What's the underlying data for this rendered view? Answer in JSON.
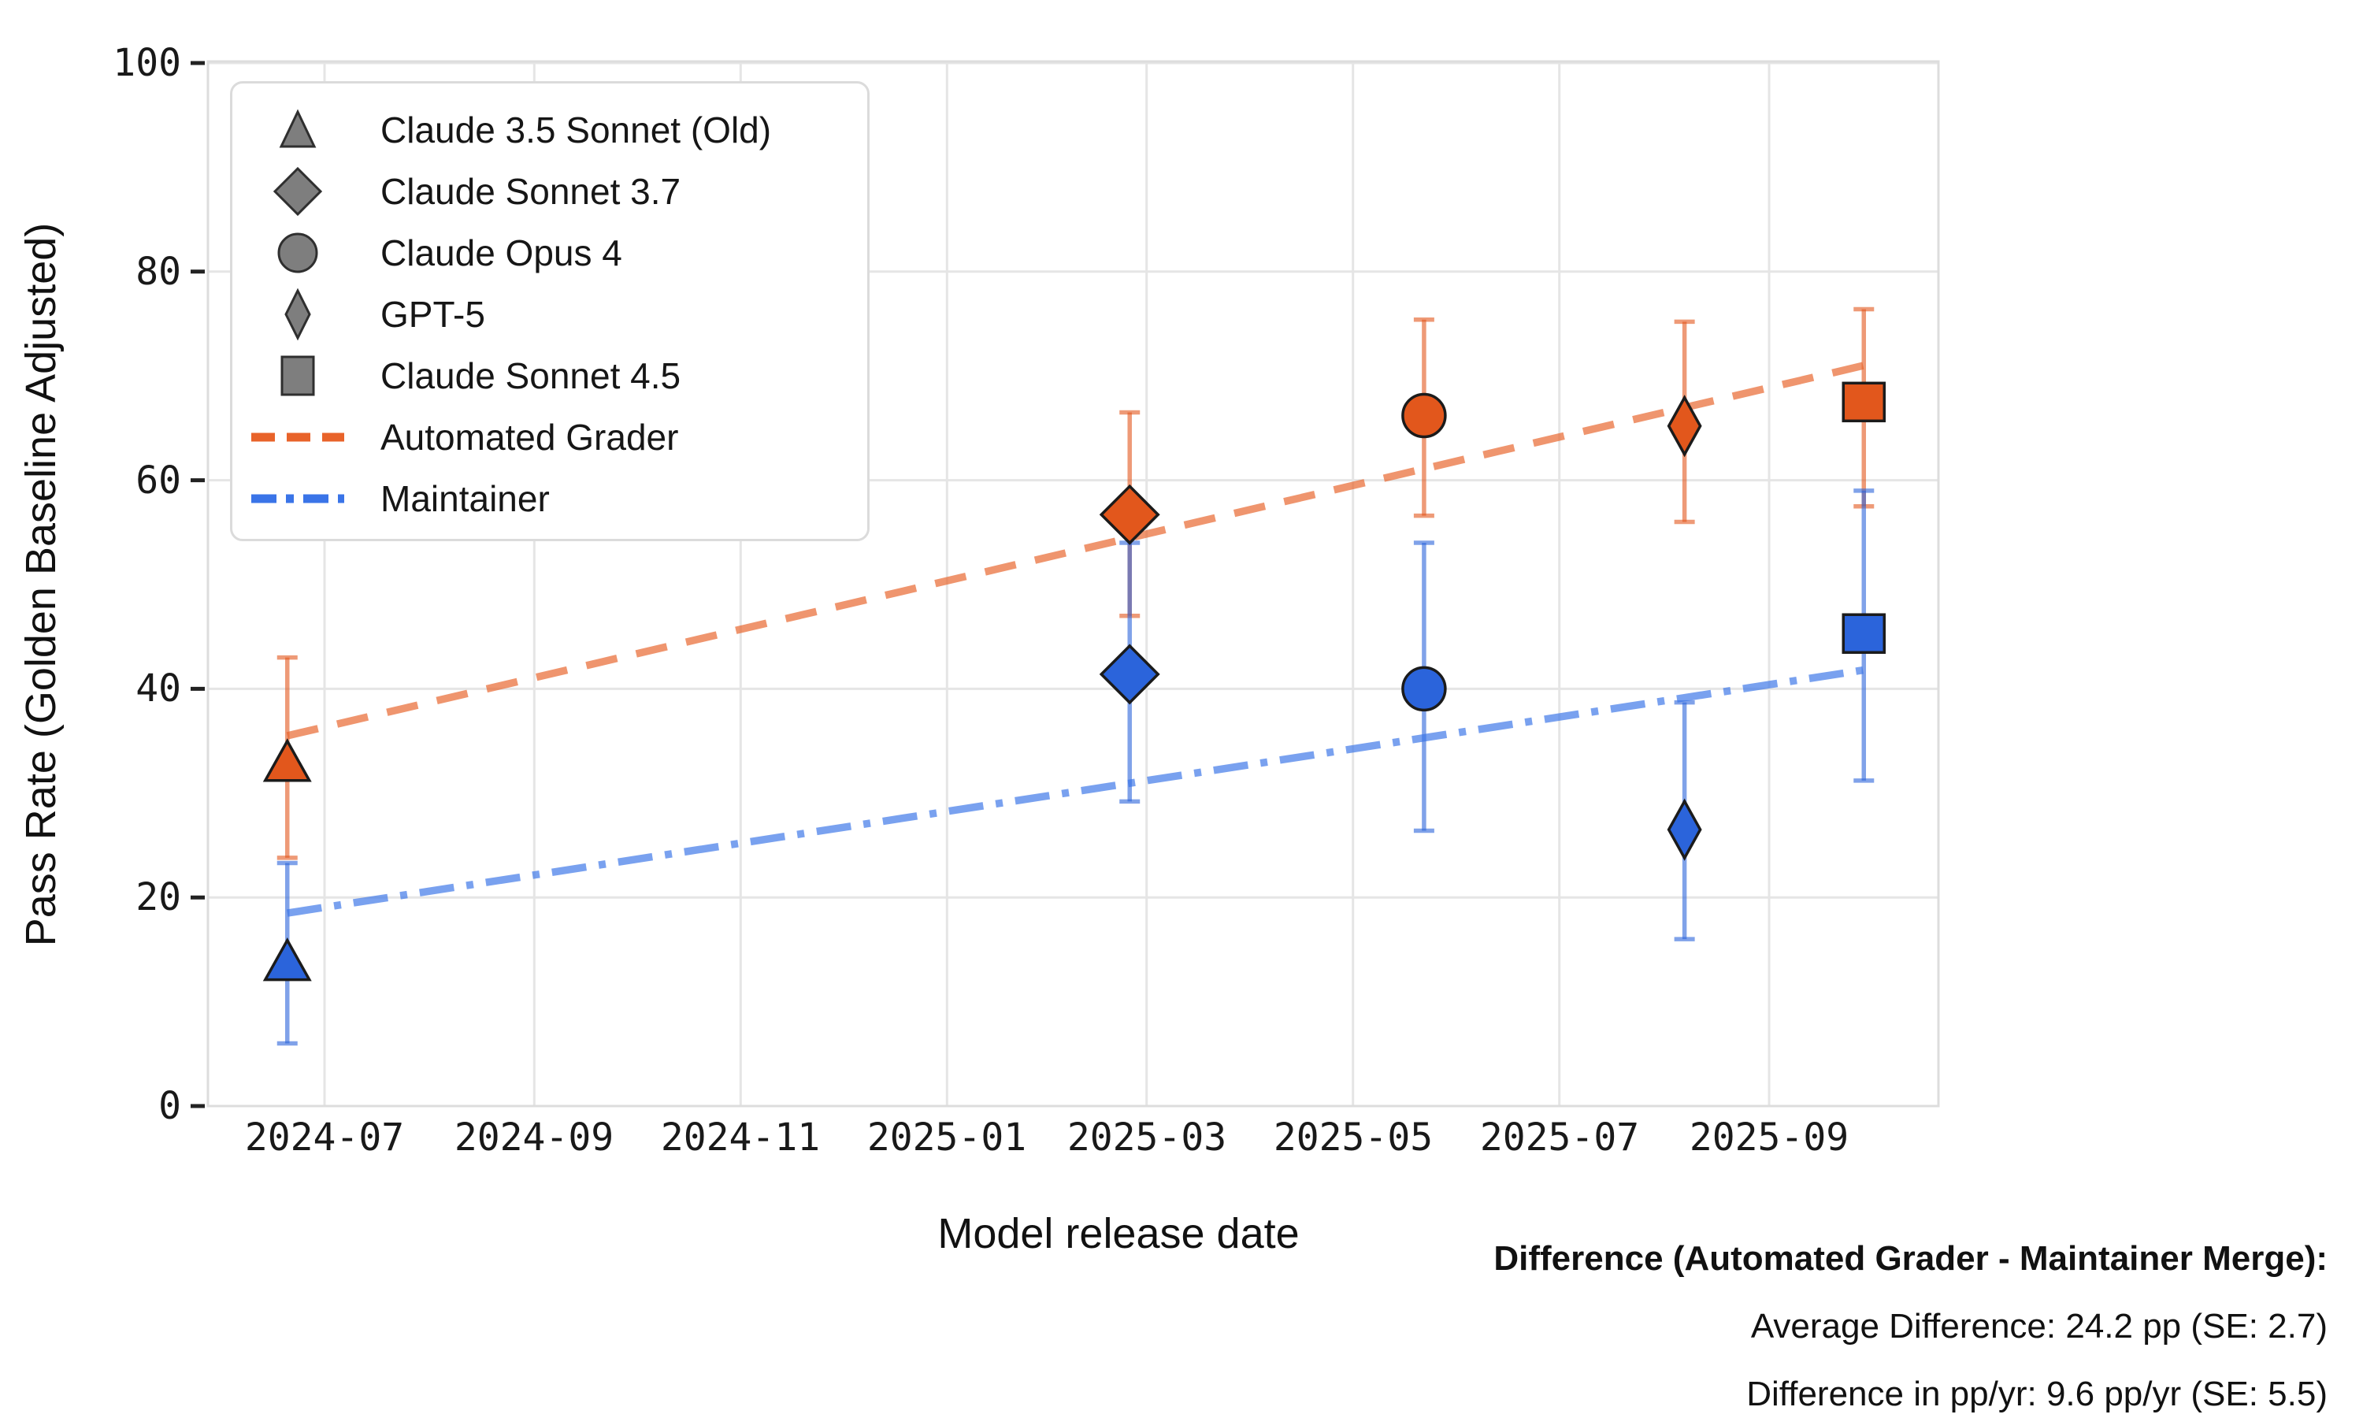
{
  "chart_data": {
    "type": "scatter",
    "title": "",
    "xlabel": "Model release date",
    "ylabel": "Pass Rate (Golden Baseline Adjusted)",
    "ylim": [
      0,
      100
    ],
    "y_ticks": [
      0,
      20,
      40,
      60,
      80,
      100
    ],
    "x_ticks": [
      {
        "label": "2024-07",
        "date": "2024-07-01"
      },
      {
        "label": "2024-09",
        "date": "2024-09-01"
      },
      {
        "label": "2024-11",
        "date": "2024-11-01"
      },
      {
        "label": "2025-01",
        "date": "2025-01-01"
      },
      {
        "label": "2025-03",
        "date": "2025-03-01"
      },
      {
        "label": "2025-05",
        "date": "2025-05-01"
      },
      {
        "label": "2025-07",
        "date": "2025-07-01"
      },
      {
        "label": "2025-09",
        "date": "2025-09-01"
      }
    ],
    "models": [
      {
        "name": "Claude 3.5 Sonnet (Old)",
        "release_date": "2024-06-20",
        "marker": "triangle"
      },
      {
        "name": "Claude Sonnet 3.7",
        "release_date": "2025-02-24",
        "marker": "diamond"
      },
      {
        "name": "Claude Opus 4",
        "release_date": "2025-05-22",
        "marker": "circle"
      },
      {
        "name": "GPT-5",
        "release_date": "2025-08-07",
        "marker": "thin-diamond"
      },
      {
        "name": "Claude Sonnet 4.5",
        "release_date": "2025-09-29",
        "marker": "square"
      }
    ],
    "series": [
      {
        "name": "Automated Grader",
        "marker_color": "#E2571C",
        "errorbar_color": "rgba(226,87,28,0.6)",
        "values": [
          32.8,
          56.7,
          66.2,
          65.2,
          67.5
        ],
        "err_low": [
          23.8,
          47.0,
          56.6,
          56.0,
          57.5
        ],
        "err_high": [
          43.0,
          66.5,
          75.4,
          75.2,
          76.4
        ]
      },
      {
        "name": "Maintainer",
        "marker_color": "#2B64DB",
        "errorbar_color": "rgba(43,100,219,0.6)",
        "values": [
          13.7,
          41.4,
          40.0,
          26.5,
          45.3
        ],
        "err_low": [
          6.0,
          29.2,
          26.4,
          16.0,
          31.2
        ],
        "err_high": [
          23.3,
          54.0,
          54.0,
          38.7,
          59.0
        ]
      }
    ],
    "trend_lines": [
      {
        "name": "Automated Grader",
        "style": "dashed",
        "color": "rgba(232,99,42,0.68)",
        "x_start": "2024-06-20",
        "x_end": "2025-09-29",
        "y_start": 35.5,
        "y_end": 71.0
      },
      {
        "name": "Maintainer",
        "style": "dashdot",
        "color": "rgba(58,116,232,0.68)",
        "x_start": "2024-06-20",
        "x_end": "2025-09-29",
        "y_start": 18.5,
        "y_end": 41.8
      }
    ],
    "grid": true,
    "legend_position": "upper left"
  },
  "legend": {
    "entries": [
      {
        "label": "Claude 3.5 Sonnet (Old)",
        "marker": "triangle",
        "fill": "#7E7E7E"
      },
      {
        "label": "Claude Sonnet 3.7",
        "marker": "diamond",
        "fill": "#7E7E7E"
      },
      {
        "label": "Claude Opus 4",
        "marker": "circle",
        "fill": "#7E7E7E"
      },
      {
        "label": "GPT-5",
        "marker": "thin-diamond",
        "fill": "#7E7E7E"
      },
      {
        "label": "Claude Sonnet 4.5",
        "marker": "square",
        "fill": "#7E7E7E"
      },
      {
        "label": "Automated Grader",
        "marker": "dashed-line",
        "fill": "#E8632A"
      },
      {
        "label": "Maintainer",
        "marker": "dashdot-line",
        "fill": "#3A74E8"
      }
    ]
  },
  "annotation": {
    "title": "Difference (Automated Grader - Maintainer Merge):",
    "average_line": "Average Difference: 24.2 pp (SE: 2.7)",
    "slope_line": "Difference in pp/yr: 9.6 pp/yr (SE: 5.5)"
  },
  "colors": {
    "grid": "#E5E5E5",
    "spine": "#DDDDDD",
    "tick_mark": "#222222",
    "marker_edge": "#1B1B1B",
    "text": "#161616"
  }
}
